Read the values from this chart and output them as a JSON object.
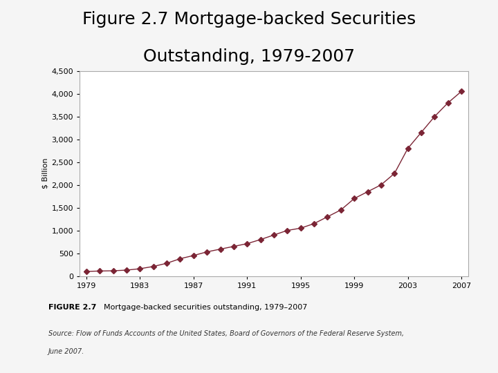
{
  "title_line1": "Figure 2.7 Mortgage-backed Securities",
  "title_line2": "Outstanding, 1979-2007",
  "title_fontsize": 18,
  "years": [
    1979,
    1980,
    1981,
    1982,
    1983,
    1984,
    1985,
    1986,
    1987,
    1988,
    1989,
    1990,
    1991,
    1992,
    1993,
    1994,
    1995,
    1996,
    1997,
    1998,
    1999,
    2000,
    2001,
    2002,
    2003,
    2004,
    2005,
    2006,
    2007
  ],
  "values": [
    100,
    110,
    115,
    130,
    160,
    210,
    280,
    380,
    450,
    530,
    590,
    650,
    710,
    800,
    900,
    1000,
    1050,
    1150,
    1300,
    1450,
    1700,
    1850,
    2000,
    2250,
    2800,
    3150,
    3500,
    3800,
    4050
  ],
  "line_color": "#7B2535",
  "marker": "D",
  "marker_size": 4,
  "ylabel": "$ Billion",
  "ylim": [
    0,
    4500
  ],
  "yticks": [
    0,
    500,
    1000,
    1500,
    2000,
    2500,
    3000,
    3500,
    4000,
    4500
  ],
  "xtick_years": [
    1979,
    1983,
    1987,
    1991,
    1995,
    1999,
    2003,
    2007
  ],
  "chart_bg": "#ffffff",
  "outer_bg": "#f5f5f5",
  "figure_label": "FIGURE 2.7",
  "figure_caption": "  Mortgage-backed securities outstanding, 1979–2007",
  "source_line1": "Source: Flow of Funds Accounts of the United States, Board of Governors of the Federal Reserve System,",
  "source_line2": "June 2007.",
  "caption_bg": "#e8c8c8"
}
